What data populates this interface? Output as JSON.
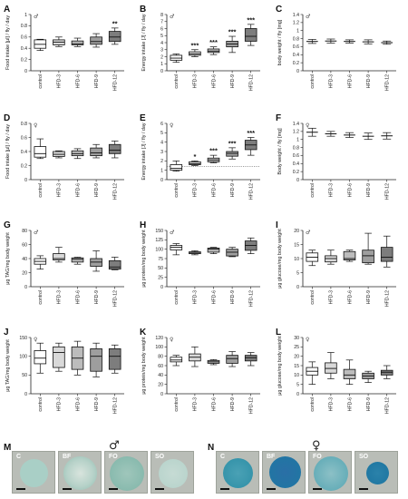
{
  "chart_data": [
    {
      "panel": "A",
      "sex": "♂",
      "type": "box",
      "ylabel": "Food intake [μl] / fly / day",
      "ylim": [
        0,
        1.0
      ],
      "yticks": [
        0,
        0.2,
        0.4,
        0.6,
        0.8,
        1.0
      ],
      "categories": [
        "control",
        "HFD-3",
        "HFD-6",
        "HFD-9",
        "HFD-12"
      ],
      "boxes": [
        [
          0.36,
          0.4,
          0.47,
          0.55,
          0.56
        ],
        [
          0.43,
          0.46,
          0.51,
          0.55,
          0.6
        ],
        [
          0.43,
          0.46,
          0.48,
          0.53,
          0.58
        ],
        [
          0.42,
          0.47,
          0.52,
          0.6,
          0.66
        ],
        [
          0.47,
          0.52,
          0.6,
          0.7,
          0.76
        ]
      ],
      "fills": [
        "#ffffff",
        "#d9d9d9",
        "#bcbcbc",
        "#9e9e9e",
        "#7d7d7d"
      ],
      "significance": [
        "",
        "",
        "",
        "",
        "**"
      ]
    },
    {
      "panel": "B",
      "sex": "♂",
      "type": "box",
      "ylabel": "Energy intake [J] / fly / day",
      "ylim": [
        0,
        8
      ],
      "yticks": [
        0,
        1,
        2,
        3,
        4,
        5,
        6,
        7,
        8
      ],
      "categories": [
        "control",
        "HFD-3",
        "HFD-6",
        "HFD-9",
        "HFD-12"
      ],
      "boxes": [
        [
          1.2,
          1.5,
          1.8,
          2.2,
          2.4
        ],
        [
          2.0,
          2.2,
          2.4,
          2.7,
          3.0
        ],
        [
          2.3,
          2.6,
          2.8,
          3.1,
          3.4
        ],
        [
          2.6,
          3.4,
          3.8,
          4.2,
          4.9
        ],
        [
          3.6,
          4.2,
          4.9,
          6.0,
          6.6
        ]
      ],
      "fills": [
        "#ffffff",
        "#d9d9d9",
        "#bcbcbc",
        "#9e9e9e",
        "#7d7d7d"
      ],
      "significance": [
        "",
        "***",
        "***",
        "***",
        "***"
      ]
    },
    {
      "panel": "C",
      "sex": "♂",
      "type": "errorbar",
      "ylabel": "body weight / fly [mg]",
      "ylim": [
        0,
        1.4
      ],
      "yticks": [
        0,
        0.2,
        0.4,
        0.6,
        0.8,
        1.0,
        1.2,
        1.4
      ],
      "categories": [
        "control",
        "HFD-3",
        "HFD-6",
        "HFD-9",
        "HFD-12"
      ],
      "mean": [
        0.73,
        0.74,
        0.73,
        0.72,
        0.7
      ],
      "err": [
        0.05,
        0.05,
        0.04,
        0.05,
        0.04
      ]
    },
    {
      "panel": "D",
      "sex": "♀",
      "type": "box",
      "ylabel": "Food intake [μl] / fly / day",
      "ylim": [
        0,
        0.8
      ],
      "yticks": [
        0,
        0.2,
        0.4,
        0.6,
        0.8
      ],
      "categories": [
        "control",
        "HFD-3",
        "HFD-6",
        "HFD-9",
        "HFD-12"
      ],
      "boxes": [
        [
          0.3,
          0.32,
          0.37,
          0.47,
          0.58
        ],
        [
          0.31,
          0.33,
          0.36,
          0.4,
          0.41
        ],
        [
          0.3,
          0.34,
          0.37,
          0.41,
          0.44
        ],
        [
          0.31,
          0.34,
          0.38,
          0.45,
          0.5
        ],
        [
          0.31,
          0.37,
          0.42,
          0.5,
          0.55
        ]
      ],
      "fills": [
        "#ffffff",
        "#d9d9d9",
        "#bcbcbc",
        "#9e9e9e",
        "#7d7d7d"
      ],
      "significance": [
        "",
        "",
        "",
        "",
        ""
      ]
    },
    {
      "panel": "E",
      "sex": "♀",
      "type": "box",
      "ylabel": "Energy intake [J] / fly / day",
      "ylim": [
        0,
        6
      ],
      "yticks": [
        0,
        1,
        2,
        3,
        4,
        5,
        6
      ],
      "categories": [
        "control",
        "HFD-3",
        "HFD-6",
        "HFD-9",
        "HFD-12"
      ],
      "boxes": [
        [
          0.9,
          1.0,
          1.2,
          1.6,
          2.0
        ],
        [
          1.5,
          1.6,
          1.7,
          1.9,
          2.0
        ],
        [
          1.8,
          1.9,
          2.1,
          2.3,
          2.6
        ],
        [
          2.2,
          2.5,
          2.8,
          3.0,
          3.4
        ],
        [
          2.6,
          3.2,
          3.7,
          4.2,
          4.5
        ]
      ],
      "fills": [
        "#ffffff",
        "#d9d9d9",
        "#bcbcbc",
        "#9e9e9e",
        "#7d7d7d"
      ],
      "significance": [
        "",
        "*",
        "***",
        "***",
        "***"
      ],
      "refline": 1.4
    },
    {
      "panel": "F",
      "sex": "♀",
      "type": "errorbar",
      "ylabel": "Body weight / fly [mg]",
      "ylim": [
        0,
        1.4
      ],
      "yticks": [
        0,
        0.2,
        0.4,
        0.6,
        0.8,
        1.0,
        1.2,
        1.4
      ],
      "categories": [
        "control",
        "HFD-3",
        "HFD-6",
        "HFD-9",
        "HFD-12"
      ],
      "mean": [
        1.18,
        1.14,
        1.11,
        1.08,
        1.09
      ],
      "err": [
        0.1,
        0.06,
        0.06,
        0.08,
        0.08
      ]
    },
    {
      "panel": "G",
      "sex": "♂",
      "type": "box",
      "ylabel": "μg TAG/mg body weight",
      "ylim": [
        0,
        80
      ],
      "yticks": [
        0,
        20,
        40,
        60,
        80
      ],
      "categories": [
        "control",
        "HFD-3",
        "HFD-6",
        "HFD-9",
        "HFD-12"
      ],
      "boxes": [
        [
          25,
          32,
          36,
          40,
          44
        ],
        [
          35,
          38,
          40,
          47,
          56
        ],
        [
          32,
          35,
          39,
          41,
          42
        ],
        [
          22,
          29,
          35,
          40,
          51
        ],
        [
          24,
          25,
          28,
          37,
          42
        ]
      ],
      "fills": [
        "#ffffff",
        "#d9d9d9",
        "#bcbcbc",
        "#9e9e9e",
        "#7d7d7d"
      ],
      "significance": [
        "",
        "",
        "",
        "",
        ""
      ]
    },
    {
      "panel": "H",
      "sex": "♂",
      "type": "box",
      "ylabel": "μg protein/mg body weight",
      "ylim": [
        0,
        150
      ],
      "yticks": [
        0,
        25,
        50,
        75,
        100,
        125,
        150
      ],
      "categories": [
        "control",
        "HFD-3",
        "HFD-6",
        "HFD-9",
        "HFD-12"
      ],
      "boxes": [
        [
          85,
          98,
          105,
          110,
          115
        ],
        [
          85,
          88,
          90,
          93,
          96
        ],
        [
          88,
          92,
          100,
          103,
          105
        ],
        [
          80,
          82,
          92,
          100,
          105
        ],
        [
          88,
          97,
          110,
          122,
          130
        ]
      ],
      "fills": [
        "#ffffff",
        "#d9d9d9",
        "#bcbcbc",
        "#9e9e9e",
        "#7d7d7d"
      ],
      "significance": [
        "",
        "",
        "",
        "",
        ""
      ]
    },
    {
      "panel": "I",
      "sex": "♂",
      "type": "box",
      "ylabel": "μg glucose/mg body weight",
      "ylim": [
        0,
        20
      ],
      "yticks": [
        0,
        5,
        10,
        15,
        20
      ],
      "categories": [
        "control",
        "HFD-3",
        "HFD-6",
        "HFD-9",
        "HFD-12"
      ],
      "boxes": [
        [
          7.5,
          9,
          10.5,
          12,
          13
        ],
        [
          8,
          8.8,
          10,
          11,
          13
        ],
        [
          9,
          9.5,
          10,
          12.5,
          13
        ],
        [
          8,
          8.5,
          11,
          13,
          19
        ],
        [
          7,
          9,
          10.5,
          14,
          18
        ]
      ],
      "fills": [
        "#ffffff",
        "#d9d9d9",
        "#bcbcbc",
        "#9e9e9e",
        "#7d7d7d"
      ],
      "significance": [
        "",
        "",
        "",
        "",
        ""
      ]
    },
    {
      "panel": "J",
      "sex": "♀",
      "type": "box",
      "ylabel": "μg TAG/mg body weight",
      "ylim": [
        0,
        150
      ],
      "yticks": [
        0,
        50,
        100,
        150
      ],
      "categories": [
        "control",
        "HFD-3",
        "HFD-6",
        "HFD-9",
        "HFD-12"
      ],
      "boxes": [
        [
          55,
          80,
          95,
          115,
          135
        ],
        [
          60,
          70,
          110,
          125,
          135
        ],
        [
          50,
          65,
          95,
          125,
          140
        ],
        [
          45,
          60,
          100,
          120,
          135
        ],
        [
          55,
          65,
          100,
          120,
          130
        ]
      ],
      "fills": [
        "#ffffff",
        "#d9d9d9",
        "#bcbcbc",
        "#9e9e9e",
        "#7d7d7d"
      ],
      "significance": [
        "",
        "",
        "",
        "",
        ""
      ]
    },
    {
      "panel": "K",
      "sex": "♀",
      "type": "box",
      "ylabel": "μg protein/mg body weight",
      "ylim": [
        0,
        120
      ],
      "yticks": [
        0,
        20,
        40,
        60,
        80,
        100,
        120
      ],
      "categories": [
        "control",
        "HFD-3",
        "HFD-6",
        "HFD-9",
        "HFD-12"
      ],
      "boxes": [
        [
          60,
          68,
          72,
          78,
          82
        ],
        [
          58,
          70,
          78,
          85,
          100
        ],
        [
          62,
          65,
          68,
          71,
          73
        ],
        [
          58,
          65,
          75,
          82,
          90
        ],
        [
          60,
          70,
          77,
          82,
          88
        ]
      ],
      "fills": [
        "#ffffff",
        "#d9d9d9",
        "#bcbcbc",
        "#9e9e9e",
        "#7d7d7d"
      ],
      "significance": [
        "",
        "",
        "",
        "",
        ""
      ]
    },
    {
      "panel": "L",
      "sex": "♀",
      "type": "box",
      "ylabel": "μg glucose/mg body weight",
      "ylim": [
        0,
        30
      ],
      "yticks": [
        0,
        5,
        10,
        15,
        20,
        25,
        30
      ],
      "categories": [
        "control",
        "HFD-3",
        "HFD-6",
        "HFD-9",
        "HFD-12"
      ],
      "boxes": [
        [
          5,
          10,
          12,
          14,
          17
        ],
        [
          8,
          11,
          13.5,
          16.5,
          22
        ],
        [
          5,
          8,
          10,
          13,
          18
        ],
        [
          6,
          8,
          9.5,
          11,
          12
        ],
        [
          8,
          10,
          11.5,
          12.5,
          15
        ]
      ],
      "fills": [
        "#ffffff",
        "#d9d9d9",
        "#bcbcbc",
        "#9e9e9e",
        "#7d7d7d"
      ],
      "significance": [
        "",
        "",
        "",
        "",
        ""
      ]
    }
  ],
  "stain_panels": [
    {
      "letter": "M",
      "sex": "♂",
      "images": [
        {
          "label": "C",
          "disc": "#a9cfc6",
          "core": "#bfd7cf"
        },
        {
          "label": "BF",
          "disc": "#8fbdb0",
          "core": "#d8e4dd"
        },
        {
          "label": "FO",
          "disc": "#7eb3a6",
          "core": "#9fc6bb"
        },
        {
          "label": "SO",
          "disc": "#b5d2ca",
          "core": "#c6dbd4"
        }
      ]
    },
    {
      "letter": "N",
      "sex": "♀",
      "images": [
        {
          "label": "C",
          "disc": "#2e8fa6",
          "core": "#4aa1b5"
        },
        {
          "label": "BF",
          "disc": "#1e78a3",
          "core": "#2a6fa6"
        },
        {
          "label": "FO",
          "disc": "#57a6b3",
          "core": "#8cc0c6"
        },
        {
          "label": "SO",
          "disc": "#1c74a0",
          "core": "#2b82aa"
        }
      ]
    }
  ]
}
